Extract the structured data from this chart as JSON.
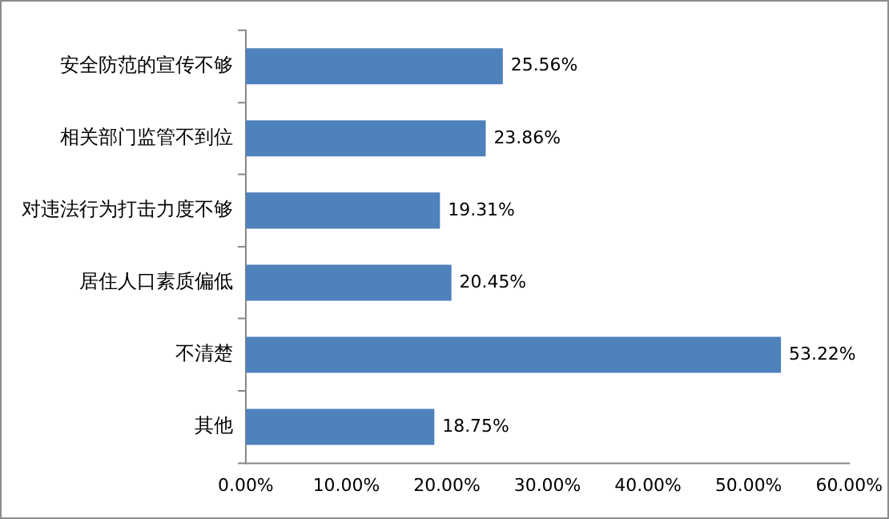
{
  "chart_data": {
    "type": "bar",
    "orientation": "horizontal",
    "categories": [
      "安全防范的宣传不够",
      "相关部门监管不到位",
      "对违法行为打击力度不够",
      "居住人口素质偏低",
      "不清楚",
      "其他"
    ],
    "values": [
      25.56,
      23.86,
      19.31,
      20.45,
      53.22,
      18.75
    ],
    "value_labels": [
      "25.56%",
      "23.86%",
      "19.31%",
      "20.45%",
      "53.22%",
      "18.75%"
    ],
    "color": "#4f81bd",
    "xlim": [
      0,
      60
    ],
    "xticks": [
      {
        "value": 0,
        "label": "0.00%"
      },
      {
        "value": 10,
        "label": "10.00%"
      },
      {
        "value": 20,
        "label": "20.00%"
      },
      {
        "value": 30,
        "label": "30.00%"
      },
      {
        "value": 40,
        "label": "40.00%"
      },
      {
        "value": 50,
        "label": "50.00%"
      },
      {
        "value": 60,
        "label": "60.00%"
      }
    ],
    "grid": false,
    "legend": false
  }
}
